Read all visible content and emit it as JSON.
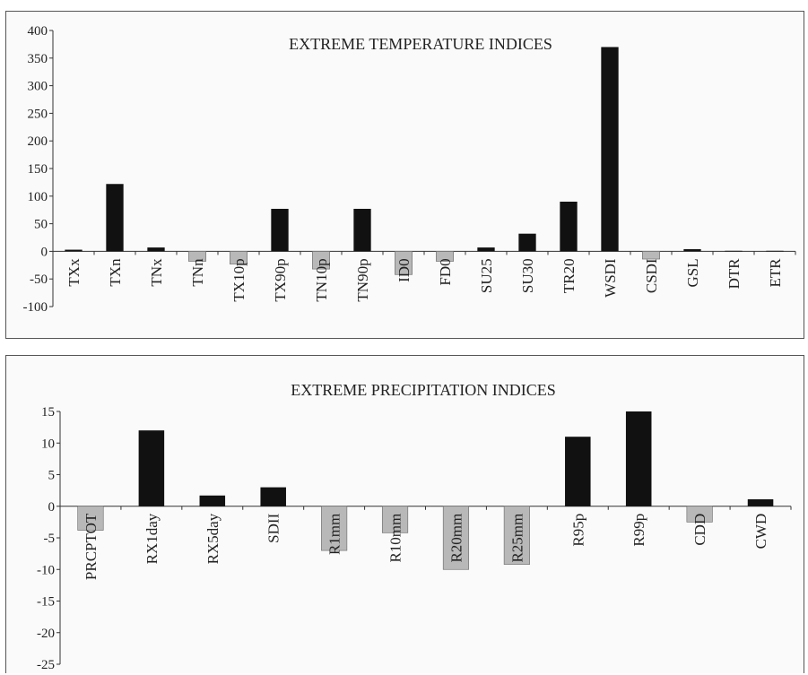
{
  "chart_data": [
    {
      "type": "bar",
      "title": "EXTREME TEMPERATURE INDICES",
      "categories": [
        "TXx",
        "TXn",
        "TNx",
        "TNn",
        "TX10p",
        "TX90p",
        "TN10p",
        "TN90p",
        "ID0",
        "FD0",
        "SU25",
        "SU30",
        "TR20",
        "WSDI",
        "CSDI",
        "GSL",
        "DTR",
        "ETR"
      ],
      "values": [
        3,
        122,
        7,
        -18,
        -23,
        77,
        -32,
        77,
        -42,
        -18,
        7,
        32,
        90,
        370,
        -14,
        4,
        1,
        1
      ],
      "ylim": [
        -100,
        400
      ],
      "yticks": [
        400,
        350,
        300,
        250,
        200,
        150,
        100,
        50,
        0,
        -50,
        -100
      ],
      "positive_color": "#111111",
      "negative_color": "#b8b8b8"
    },
    {
      "type": "bar",
      "title": "EXTREME PRECIPITATION INDICES",
      "categories": [
        "PRCPTOT",
        "RX1day",
        "RX5day",
        "SDII",
        "R1mm",
        "R10mm",
        "R20mm",
        "R25mm",
        "R95p",
        "R99p",
        "CDD",
        "CWD"
      ],
      "values": [
        -3.8,
        12,
        1.7,
        3,
        -7,
        -4.2,
        -10,
        -9.2,
        11,
        15,
        -2.5,
        1.1
      ],
      "ylim": [
        -25,
        15
      ],
      "yticks": [
        15,
        10,
        5,
        0,
        -5,
        -10,
        -15,
        -20,
        -25
      ],
      "positive_color": "#111111",
      "negative_color": "#b8b8b8"
    }
  ]
}
